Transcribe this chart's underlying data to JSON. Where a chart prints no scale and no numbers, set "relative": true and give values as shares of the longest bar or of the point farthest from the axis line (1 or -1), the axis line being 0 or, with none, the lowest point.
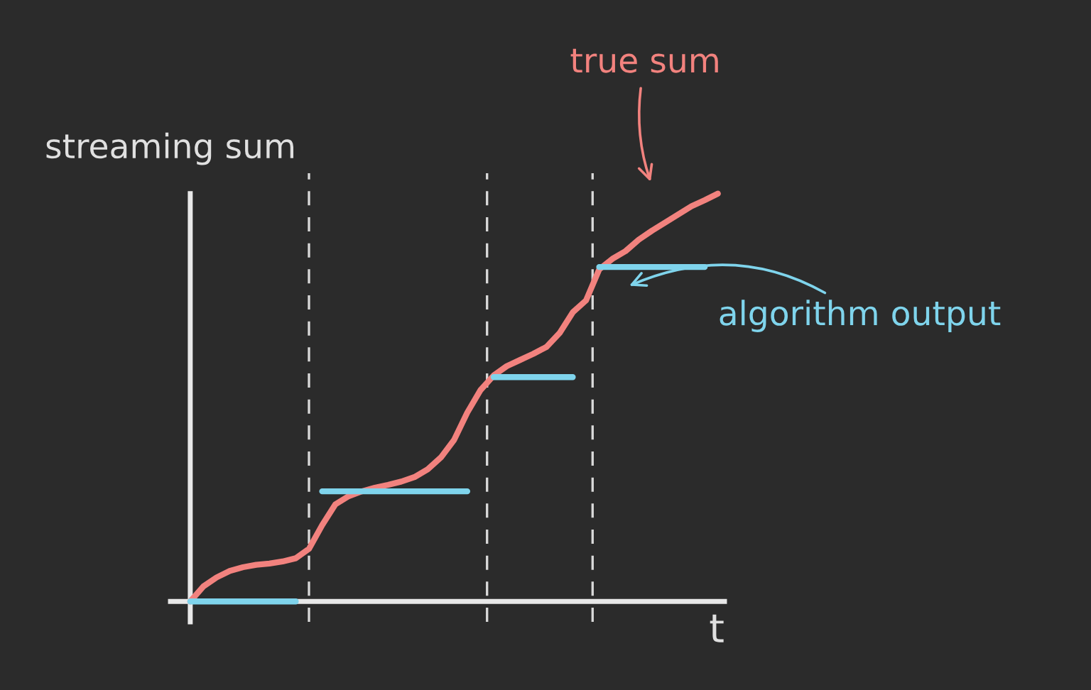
{
  "chart_data": {
    "type": "line",
    "relative": true,
    "xlabel": "t",
    "ylabel": "streaming sum",
    "categories": [
      null,
      null,
      null,
      null,
      null,
      null,
      null,
      null,
      null,
      null,
      null,
      null,
      null,
      null,
      null,
      null,
      null,
      null,
      null,
      null,
      null,
      null,
      null,
      null,
      null,
      null,
      null,
      null,
      null,
      null,
      null,
      null,
      null,
      null,
      null,
      null,
      null,
      null,
      null,
      null,
      null
    ],
    "series": [
      {
        "name": "true sum",
        "color": "#f2827e",
        "values": [
          0,
          0.037,
          0.059,
          0.075,
          0.084,
          0.09,
          0.093,
          0.098,
          0.106,
          0.129,
          0.187,
          0.238,
          0.258,
          0.27,
          0.279,
          0.286,
          0.294,
          0.305,
          0.324,
          0.353,
          0.396,
          0.463,
          0.518,
          0.554,
          0.577,
          0.592,
          0.607,
          0.624,
          0.658,
          0.709,
          0.738,
          0.814,
          0.84,
          0.859,
          0.887,
          0.909,
          0.929,
          0.949,
          0.969,
          0.984,
          1.0
        ]
      },
      {
        "name": "algorithm output",
        "color": "#7fd4ec",
        "values": [
          0,
          0,
          0,
          0,
          0,
          0,
          0,
          0,
          0,
          null,
          0.27,
          0.27,
          0.27,
          0.27,
          0.27,
          0.27,
          0.27,
          0.27,
          0.27,
          0.27,
          0.27,
          0.27,
          null,
          0.55,
          0.55,
          0.55,
          0.55,
          0.55,
          0.55,
          0.55,
          null,
          0.82,
          0.82,
          0.82,
          0.82,
          0.82,
          0.82,
          0.82,
          0.82,
          0.82,
          null
        ]
      }
    ]
  }
}
